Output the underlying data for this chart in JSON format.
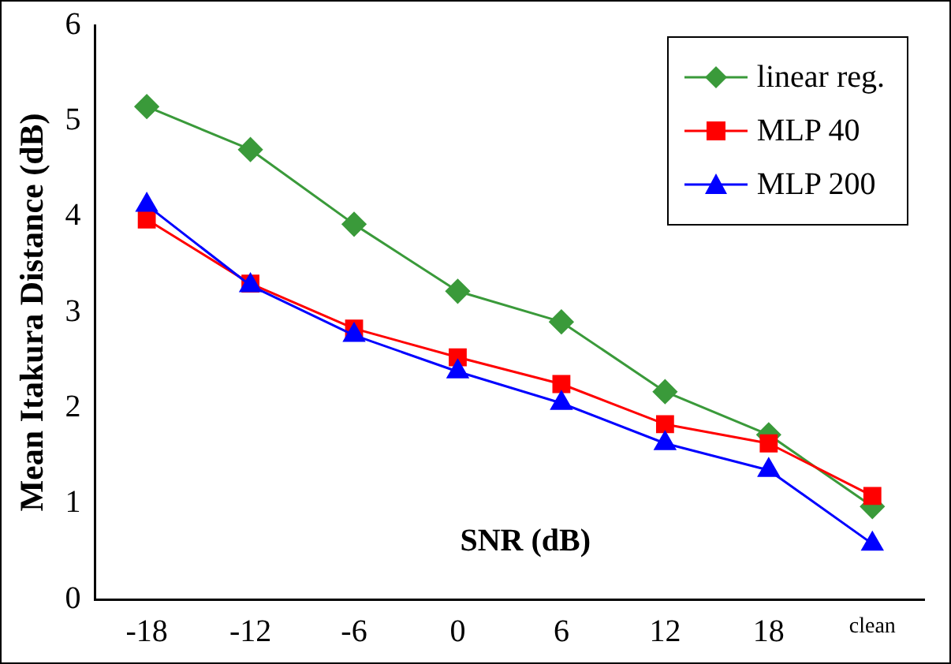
{
  "chart_data": {
    "type": "line",
    "xlabel": "SNR (dB)",
    "ylabel": "Mean Itakura Distance (dB)",
    "categories": [
      "-18",
      "-12",
      "-6",
      "0",
      "6",
      "12",
      "18",
      "clean"
    ],
    "ylim": [
      0,
      6
    ],
    "yticks": [
      0,
      1,
      2,
      3,
      4,
      5,
      6
    ],
    "grid": false,
    "legend": "top right",
    "line_style": "solid",
    "series": [
      {
        "name": "linear reg.",
        "color": "#3a9a3a",
        "marker": "diamond",
        "values": [
          5.15,
          4.7,
          3.92,
          3.22,
          2.9,
          2.17,
          1.72,
          0.97
        ]
      },
      {
        "name": "MLP 40",
        "color": "#ff0000",
        "marker": "square",
        "values": [
          3.97,
          3.3,
          2.83,
          2.53,
          2.25,
          1.83,
          1.63,
          1.08
        ]
      },
      {
        "name": "MLP 200",
        "color": "#0000ff",
        "marker": "triangle",
        "values": [
          4.12,
          3.28,
          2.76,
          2.38,
          2.05,
          1.63,
          1.35,
          0.58
        ]
      }
    ]
  }
}
